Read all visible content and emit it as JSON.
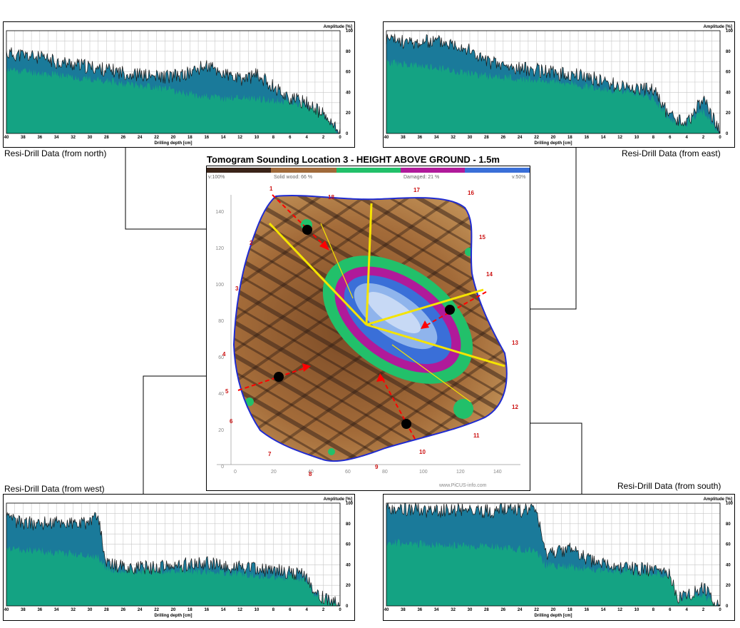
{
  "panels": {
    "north": {
      "caption": "Resi-Drill Data (from north)",
      "amplitude_label": "Amplitude [%]",
      "depth_label": "Drilling depth [cm]",
      "x_ticks": [
        "40",
        "38",
        "36",
        "34",
        "32",
        "30",
        "28",
        "26",
        "24",
        "22",
        "20",
        "18",
        "16",
        "14",
        "12",
        "10",
        "8",
        "6",
        "4",
        "2",
        "0"
      ],
      "y_ticks": [
        "100",
        "80",
        "60",
        "40",
        "20",
        "0"
      ],
      "drill_profile": [
        {
          "depth": 40,
          "sound": 62,
          "decay": 78
        },
        {
          "depth": 37,
          "sound": 60,
          "decay": 75
        },
        {
          "depth": 34,
          "sound": 57,
          "decay": 70
        },
        {
          "depth": 31,
          "sound": 54,
          "decay": 66
        },
        {
          "depth": 28,
          "sound": 51,
          "decay": 62
        },
        {
          "depth": 25,
          "sound": 48,
          "decay": 58
        },
        {
          "depth": 22,
          "sound": 45,
          "decay": 55
        },
        {
          "depth": 19,
          "sound": 40,
          "decay": 56
        },
        {
          "depth": 16,
          "sound": 36,
          "decay": 66
        },
        {
          "depth": 14,
          "sound": 34,
          "decay": 58
        },
        {
          "depth": 12,
          "sound": 35,
          "decay": 52
        },
        {
          "depth": 10,
          "sound": 34,
          "decay": 57
        },
        {
          "depth": 8,
          "sound": 32,
          "decay": 46
        },
        {
          "depth": 6,
          "sound": 30,
          "decay": 34
        },
        {
          "depth": 4,
          "sound": 28,
          "decay": 30
        },
        {
          "depth": 2,
          "sound": 18,
          "decay": 18
        },
        {
          "depth": 0,
          "sound": 0,
          "decay": 0
        }
      ]
    },
    "east": {
      "caption": "Resi-Drill Data (from east)",
      "amplitude_label": "Amplitude [%]",
      "depth_label": "Drilling depth [cm]",
      "x_ticks": [
        "40",
        "38",
        "36",
        "34",
        "32",
        "30",
        "28",
        "26",
        "24",
        "22",
        "20",
        "18",
        "16",
        "14",
        "12",
        "10",
        "8",
        "6",
        "4",
        "2",
        "0"
      ],
      "y_ticks": [
        "100",
        "80",
        "60",
        "40",
        "20",
        "0"
      ],
      "drill_profile": [
        {
          "depth": 40,
          "sound": 70,
          "decay": 92
        },
        {
          "depth": 37,
          "sound": 66,
          "decay": 88
        },
        {
          "depth": 34,
          "sound": 64,
          "decay": 90
        },
        {
          "depth": 31,
          "sound": 60,
          "decay": 86
        },
        {
          "depth": 28,
          "sound": 56,
          "decay": 70
        },
        {
          "depth": 25,
          "sound": 54,
          "decay": 64
        },
        {
          "depth": 22,
          "sound": 52,
          "decay": 62
        },
        {
          "depth": 19,
          "sound": 50,
          "decay": 58
        },
        {
          "depth": 16,
          "sound": 46,
          "decay": 56
        },
        {
          "depth": 13,
          "sound": 42,
          "decay": 48
        },
        {
          "depth": 10,
          "sound": 40,
          "decay": 44
        },
        {
          "depth": 8,
          "sound": 34,
          "decay": 42
        },
        {
          "depth": 6,
          "sound": 14,
          "decay": 16
        },
        {
          "depth": 4,
          "sound": 10,
          "decay": 10
        },
        {
          "depth": 2,
          "sound": 22,
          "decay": 34
        },
        {
          "depth": 0,
          "sound": 0,
          "decay": 0
        }
      ]
    },
    "west": {
      "caption": "Resi-Drill Data (from west)",
      "amplitude_label": "Amplitude [%]",
      "depth_label": "Drilling depth [cm]",
      "x_ticks": [
        "40",
        "38",
        "36",
        "34",
        "32",
        "30",
        "28",
        "26",
        "24",
        "22",
        "20",
        "18",
        "16",
        "14",
        "12",
        "10",
        "8",
        "6",
        "4",
        "2",
        "0"
      ],
      "y_ticks": [
        "100",
        "80",
        "60",
        "40",
        "20",
        "0"
      ],
      "drill_profile": [
        {
          "depth": 40,
          "sound": 55,
          "decay": 84
        },
        {
          "depth": 37,
          "sound": 54,
          "decay": 80
        },
        {
          "depth": 34,
          "sound": 52,
          "decay": 82
        },
        {
          "depth": 31,
          "sound": 50,
          "decay": 80
        },
        {
          "depth": 29,
          "sound": 48,
          "decay": 86
        },
        {
          "depth": 28,
          "sound": 36,
          "decay": 40
        },
        {
          "depth": 25,
          "sound": 34,
          "decay": 38
        },
        {
          "depth": 22,
          "sound": 33,
          "decay": 37
        },
        {
          "depth": 19,
          "sound": 34,
          "decay": 40
        },
        {
          "depth": 16,
          "sound": 34,
          "decay": 42
        },
        {
          "depth": 13,
          "sound": 32,
          "decay": 38
        },
        {
          "depth": 10,
          "sound": 30,
          "decay": 36
        },
        {
          "depth": 7,
          "sound": 28,
          "decay": 34
        },
        {
          "depth": 4,
          "sound": 26,
          "decay": 30
        },
        {
          "depth": 3,
          "sound": 10,
          "decay": 12
        },
        {
          "depth": 0,
          "sound": 0,
          "decay": 0
        }
      ]
    },
    "south": {
      "caption": "Resi-Drill Data (from south)",
      "amplitude_label": "Amplitude [%]",
      "depth_label": "Drilling depth [cm]",
      "x_ticks": [
        "40",
        "38",
        "36",
        "34",
        "32",
        "30",
        "28",
        "26",
        "24",
        "22",
        "20",
        "18",
        "16",
        "14",
        "12",
        "10",
        "8",
        "6",
        "4",
        "2",
        "0"
      ],
      "y_ticks": [
        "100",
        "80",
        "60",
        "40",
        "20",
        "0"
      ],
      "drill_profile": [
        {
          "depth": 40,
          "sound": 62,
          "decay": 96
        },
        {
          "depth": 37,
          "sound": 60,
          "decay": 94
        },
        {
          "depth": 34,
          "sound": 60,
          "decay": 92
        },
        {
          "depth": 31,
          "sound": 58,
          "decay": 94
        },
        {
          "depth": 28,
          "sound": 58,
          "decay": 92
        },
        {
          "depth": 25,
          "sound": 56,
          "decay": 94
        },
        {
          "depth": 22,
          "sound": 54,
          "decay": 92
        },
        {
          "depth": 21,
          "sound": 40,
          "decay": 50
        },
        {
          "depth": 18,
          "sound": 38,
          "decay": 56
        },
        {
          "depth": 15,
          "sound": 36,
          "decay": 42
        },
        {
          "depth": 12,
          "sound": 34,
          "decay": 38
        },
        {
          "depth": 9,
          "sound": 32,
          "decay": 36
        },
        {
          "depth": 6,
          "sound": 30,
          "decay": 30
        },
        {
          "depth": 5,
          "sound": 8,
          "decay": 8
        },
        {
          "depth": 2,
          "sound": 10,
          "decay": 18
        },
        {
          "depth": 0,
          "sound": 0,
          "decay": 0
        }
      ]
    }
  },
  "tomogram": {
    "title": "Tomogram Sounding Location 3 - HEIGHT ABOVE GROUND - 1.5m",
    "legend": {
      "left": "v:100%",
      "solid": "Solid wood: 66 %",
      "damaged": "Damaged: 21 %",
      "right": "v:50%"
    },
    "watermark": "www.PiCUS-info.com",
    "x_axis_ticks": [
      "0",
      "20",
      "40",
      "60",
      "80",
      "100",
      "120",
      "140"
    ],
    "y_axis_ticks": [
      "140",
      "120",
      "100",
      "80",
      "60",
      "40",
      "20",
      "0"
    ],
    "sensor_labels": [
      "1",
      "2",
      "3",
      "4",
      "5",
      "6",
      "7",
      "8",
      "9",
      "10",
      "11",
      "12",
      "13",
      "14",
      "15",
      "16",
      "17",
      "18"
    ]
  },
  "colors": {
    "sound_fill": "#14a383",
    "decay_fill": "#1a7a9a",
    "trace_line": "#1a1a1a",
    "tomo_outline": "#1f2bd1",
    "arrow": "#ff0000",
    "yellow_line": "#f5e400",
    "sensor_label": "#cc1111",
    "legend_dark": "#3a2418",
    "legend_brown": "#a06a3a",
    "legend_green": "#22c06a",
    "legend_magenta": "#b01a9a",
    "legend_blue": "#3a6fd8"
  }
}
